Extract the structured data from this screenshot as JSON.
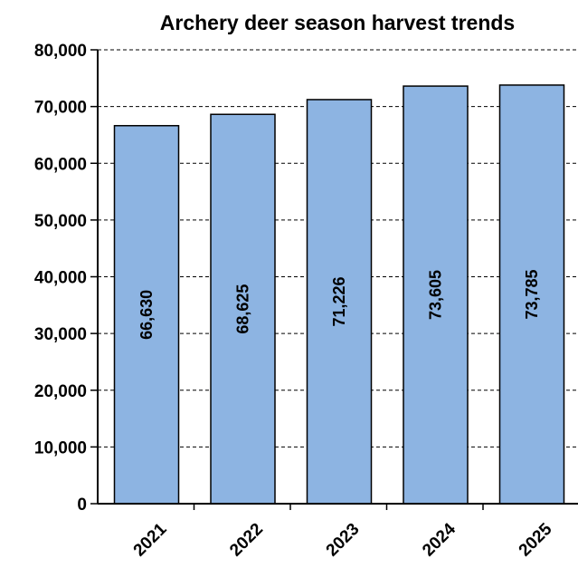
{
  "chart_data": {
    "type": "bar",
    "title": "Archery deer season harvest trends",
    "categories": [
      "2021",
      "2022",
      "2023",
      "2024",
      "2025"
    ],
    "values": [
      66630,
      68625,
      71226,
      73605,
      73785
    ],
    "data_labels": [
      "66,630",
      "68,625",
      "71,226",
      "73,605",
      "73,785"
    ],
    "ylim": [
      0,
      80000
    ],
    "yticks": [
      0,
      10000,
      20000,
      30000,
      40000,
      50000,
      60000,
      70000,
      80000
    ],
    "ytick_labels": [
      "0",
      "10,000",
      "20,000",
      "30,000",
      "40,000",
      "50,000",
      "60,000",
      "70,000",
      "80,000"
    ],
    "grid": true,
    "bar_color": "#8DB4E2"
  }
}
